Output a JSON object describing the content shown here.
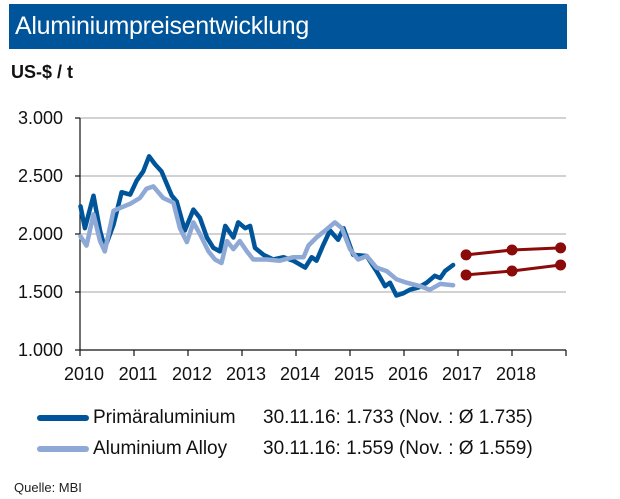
{
  "title": "Aluminiumpreisentwicklung",
  "source": "Quelle: MBI",
  "chart_data": {
    "type": "line",
    "title": "Aluminiumpreisentwicklung",
    "ylabel": "US-$ / t",
    "ylim": [
      1000,
      3000
    ],
    "xlim": [
      2010,
      2019
    ],
    "y_ticks": [
      "1.000",
      "1.500",
      "2.000",
      "2.500",
      "3.000"
    ],
    "y_tick_values": [
      1000,
      1500,
      2000,
      2500,
      3000
    ],
    "x_ticks": [
      "2010",
      "2011",
      "2012",
      "2013",
      "2014",
      "2015",
      "2016",
      "2017",
      "2018"
    ],
    "grid": "horizontal",
    "legend_placement": "bottom",
    "series": [
      {
        "name": "Primäraluminium",
        "color": "#00559a",
        "legend_value": "30.11.16: 1.733 (Nov. : Ø 1.735)",
        "x": [
          2010.01,
          2010.09,
          2010.25,
          2010.37,
          2010.46,
          2010.62,
          2010.77,
          2010.93,
          2011.05,
          2011.17,
          2011.28,
          2011.39,
          2011.51,
          2011.7,
          2011.79,
          2011.94,
          2012.1,
          2012.22,
          2012.35,
          2012.47,
          2012.59,
          2012.69,
          2012.84,
          2012.93,
          2013.06,
          2013.15,
          2013.24,
          2013.4,
          2013.58,
          2013.77,
          2013.95,
          2014.17,
          2014.29,
          2014.38,
          2014.51,
          2014.63,
          2014.78,
          2014.88,
          2015.06,
          2015.31,
          2015.49,
          2015.65,
          2015.74,
          2015.86,
          2015.99,
          2016.11,
          2016.27,
          2016.42,
          2016.57,
          2016.67,
          2016.76,
          2016.91
        ],
        "y": [
          2240,
          2050,
          2330,
          2030,
          1880,
          2080,
          2360,
          2340,
          2460,
          2540,
          2670,
          2600,
          2540,
          2330,
          2280,
          2030,
          2210,
          2140,
          1970,
          1880,
          1850,
          2070,
          1970,
          2100,
          2050,
          2070,
          1880,
          1820,
          1780,
          1800,
          1770,
          1710,
          1800,
          1770,
          1910,
          2030,
          1950,
          2050,
          1820,
          1810,
          1680,
          1550,
          1580,
          1470,
          1490,
          1520,
          1540,
          1580,
          1640,
          1620,
          1680,
          1733
        ]
      },
      {
        "name": "Aluminium Alloy",
        "color": "#8fa9d6",
        "legend_value": "30.11.16: 1.559 (Nov. : Ø 1.559)",
        "x": [
          2010.01,
          2010.12,
          2010.25,
          2010.37,
          2010.46,
          2010.62,
          2010.77,
          2010.93,
          2011.11,
          2011.23,
          2011.36,
          2011.54,
          2011.73,
          2011.85,
          2011.98,
          2012.1,
          2012.22,
          2012.38,
          2012.5,
          2012.62,
          2012.72,
          2012.84,
          2012.96,
          2013.09,
          2013.21,
          2013.46,
          2013.7,
          2013.95,
          2014.14,
          2014.23,
          2014.38,
          2014.54,
          2014.72,
          2014.85,
          2015.0,
          2015.15,
          2015.31,
          2015.49,
          2015.68,
          2015.86,
          2016.05,
          2016.3,
          2016.48,
          2016.67,
          2016.91
        ],
        "y": [
          1980,
          1900,
          2170,
          1940,
          1850,
          2200,
          2230,
          2260,
          2310,
          2390,
          2410,
          2310,
          2270,
          2050,
          1930,
          2100,
          2000,
          1850,
          1780,
          1750,
          1940,
          1870,
          1940,
          1850,
          1780,
          1780,
          1770,
          1800,
          1800,
          1900,
          1970,
          2030,
          2100,
          2050,
          1870,
          1780,
          1810,
          1710,
          1680,
          1610,
          1580,
          1550,
          1520,
          1570,
          1559
        ]
      },
      {
        "color": "#8b0a0a",
        "marker": "circle",
        "x": [
          2017.15,
          2018.0,
          2018.9
        ],
        "y": [
          1820,
          1862,
          1880
        ]
      },
      {
        "color": "#8b0a0a",
        "marker": "circle",
        "x": [
          2017.15,
          2018.0,
          2018.9
        ],
        "y": [
          1647,
          1681,
          1733
        ]
      }
    ]
  }
}
